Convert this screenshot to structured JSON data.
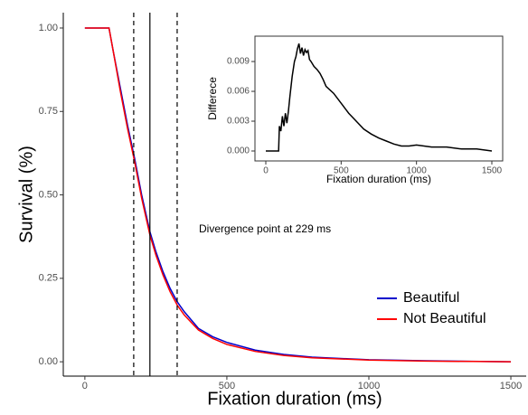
{
  "chart_data": [
    {
      "type": "line",
      "xlabel": "Fixation duration (ms)",
      "ylabel": "Survival (%)",
      "annotation": "Divergence point at 229 ms",
      "x": [
        0,
        50,
        85,
        100,
        125,
        150,
        175,
        200,
        229,
        250,
        275,
        300,
        325,
        350,
        400,
        450,
        500,
        600,
        700,
        800,
        1000,
        1200,
        1500
      ],
      "series": [
        {
          "name": "Beautiful",
          "color": "#0000cc",
          "values": [
            1,
            1,
            1,
            0.93,
            0.82,
            0.71,
            0.61,
            0.5,
            0.39,
            0.33,
            0.27,
            0.22,
            0.18,
            0.15,
            0.1,
            0.075,
            0.058,
            0.035,
            0.022,
            0.014,
            0.006,
            0.003,
            0
          ]
        },
        {
          "name": "Not Beautiful",
          "color": "#ff0000",
          "values": [
            1,
            1,
            1,
            0.93,
            0.81,
            0.7,
            0.6,
            0.49,
            0.38,
            0.32,
            0.26,
            0.21,
            0.17,
            0.14,
            0.095,
            0.07,
            0.052,
            0.031,
            0.019,
            0.012,
            0.005,
            0.002,
            0
          ]
        }
      ],
      "vlines": [
        {
          "x": 172,
          "style": "dashed"
        },
        {
          "x": 229,
          "style": "solid"
        },
        {
          "x": 325,
          "style": "dashed"
        }
      ],
      "xlim": [
        -76,
        1554
      ],
      "xticks": [
        0,
        500,
        1000,
        1500
      ],
      "ylim": [
        -0.043,
        1.046
      ],
      "yticks": [
        {
          "value": 0,
          "label": "0.00"
        },
        {
          "value": 0.25,
          "label": "0.25"
        },
        {
          "value": 0.5,
          "label": "0.50"
        },
        {
          "value": 0.75,
          "label": "0.75"
        },
        {
          "value": 1,
          "label": "1.00"
        }
      ],
      "legend": "bottom-right",
      "grid": false
    },
    {
      "type": "line",
      "xlabel": "Fixation duration (ms)",
      "ylabel": "Differece",
      "x": [
        0,
        85,
        90,
        100,
        110,
        120,
        130,
        140,
        150,
        160,
        175,
        190,
        200,
        210,
        220,
        230,
        240,
        250,
        260,
        270,
        280,
        290,
        300,
        320,
        340,
        360,
        380,
        400,
        450,
        500,
        550,
        600,
        650,
        700,
        750,
        800,
        850,
        900,
        950,
        1000,
        1100,
        1200,
        1300,
        1400,
        1500
      ],
      "series": [
        {
          "color": "#000000",
          "values": [
            0,
            0,
            0.0025,
            0.002,
            0.0035,
            0.0025,
            0.0038,
            0.0028,
            0.004,
            0.0055,
            0.0075,
            0.009,
            0.0095,
            0.0103,
            0.0108,
            0.0098,
            0.0104,
            0.0096,
            0.0102,
            0.0099,
            0.0101,
            0.0092,
            0.009,
            0.0085,
            0.0082,
            0.0078,
            0.0072,
            0.0065,
            0.0058,
            0.0048,
            0.0038,
            0.003,
            0.0022,
            0.0017,
            0.0013,
            0.001,
            0.0007,
            0.0005,
            0.0005,
            0.0006,
            0.0004,
            0.0004,
            0.0002,
            0.0002,
            0
          ]
        }
      ],
      "xlim": [
        -72,
        1572
      ],
      "xticks": [
        0,
        500,
        1000,
        1500
      ],
      "ylim": [
        -0.001,
        0.01155
      ],
      "yticks": [
        {
          "value": 0,
          "label": "0.000"
        },
        {
          "value": 0.003,
          "label": "0.003"
        },
        {
          "value": 0.006,
          "label": "0.006"
        },
        {
          "value": 0.009,
          "label": "0.009"
        }
      ],
      "grid": false
    }
  ]
}
